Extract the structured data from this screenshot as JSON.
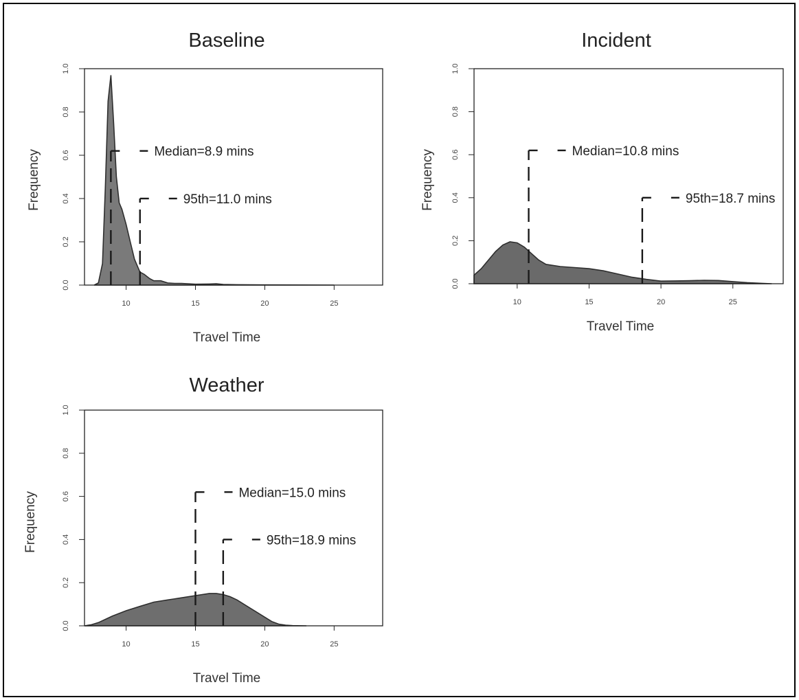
{
  "chart_data": [
    {
      "type": "area",
      "id": "baseline",
      "title": "Baseline",
      "xlabel": "Travel Time",
      "ylabel": "Frequency",
      "xlim": [
        7,
        28.5
      ],
      "ylim": [
        0,
        1.0
      ],
      "xticks": [
        "10",
        "15",
        "20",
        "25"
      ],
      "yticks": [
        "0.0",
        "0.2",
        "0.4",
        "0.6",
        "0.8",
        "1.0"
      ],
      "fill_color": "#7a7a7a",
      "series": [
        {
          "x": [
            7.7,
            8.0,
            8.3,
            8.5,
            8.7,
            8.9,
            9.1,
            9.3,
            9.5,
            9.7,
            10.0,
            10.3,
            10.6,
            11.0,
            11.3,
            11.7,
            12.0,
            12.5,
            13.0,
            13.5,
            14.0,
            15.0,
            16.0,
            16.5,
            17.0,
            18.0,
            20.0,
            25.0
          ],
          "y": [
            0.0,
            0.01,
            0.1,
            0.45,
            0.85,
            0.97,
            0.75,
            0.5,
            0.38,
            0.35,
            0.28,
            0.2,
            0.12,
            0.06,
            0.05,
            0.03,
            0.02,
            0.02,
            0.01,
            0.008,
            0.008,
            0.004,
            0.005,
            0.006,
            0.003,
            0.002,
            0.001,
            0.0
          ]
        }
      ],
      "annotations": [
        {
          "label": "Median=8.9 mins",
          "x": 8.9,
          "y": 0.62
        },
        {
          "label": "95th=11.0 mins",
          "x": 11.0,
          "y": 0.4
        }
      ]
    },
    {
      "type": "area",
      "id": "incident",
      "title": "Incident",
      "xlabel": "Travel Time",
      "ylabel": "Frequency",
      "xlim": [
        7,
        28.5
      ],
      "ylim": [
        0,
        1.0
      ],
      "xticks": [
        "10",
        "15",
        "20",
        "25"
      ],
      "yticks": [
        "0.0",
        "0.2",
        "0.4",
        "0.6",
        "0.8",
        "1.0"
      ],
      "fill_color": "#6a6a6a",
      "series": [
        {
          "x": [
            7.0,
            7.5,
            8.0,
            8.5,
            9.0,
            9.5,
            10.0,
            10.5,
            11.0,
            11.5,
            12.0,
            13.0,
            14.0,
            15.0,
            16.0,
            17.0,
            18.0,
            19.0,
            20.0,
            21.0,
            22.0,
            23.0,
            24.0,
            25.0,
            26.0,
            27.0,
            27.7
          ],
          "y": [
            0.04,
            0.07,
            0.11,
            0.15,
            0.18,
            0.195,
            0.19,
            0.17,
            0.14,
            0.11,
            0.09,
            0.08,
            0.075,
            0.07,
            0.06,
            0.045,
            0.03,
            0.02,
            0.012,
            0.013,
            0.014,
            0.016,
            0.015,
            0.01,
            0.005,
            0.002,
            0.0
          ]
        }
      ],
      "annotations": [
        {
          "label": "Median=10.8 mins",
          "x": 10.8,
          "y": 0.62
        },
        {
          "label": "95th=18.7 mins",
          "x": 18.7,
          "y": 0.4
        }
      ]
    },
    {
      "type": "area",
      "id": "weather",
      "title": "Weather",
      "xlabel": "Travel Time",
      "ylabel": "Frequency",
      "xlim": [
        7,
        28.5
      ],
      "ylim": [
        0,
        1.0
      ],
      "xticks": [
        "10",
        "15",
        "20",
        "25"
      ],
      "yticks": [
        "0.0",
        "0.2",
        "0.4",
        "0.6",
        "0.8",
        "1.0"
      ],
      "fill_color": "#6e6e6e",
      "series": [
        {
          "x": [
            7.0,
            7.5,
            8.0,
            8.5,
            9.0,
            10.0,
            11.0,
            12.0,
            13.0,
            14.0,
            15.0,
            16.0,
            16.5,
            17.0,
            17.5,
            18.0,
            19.0,
            20.0,
            20.5,
            21.0,
            21.5,
            22.0,
            23.0
          ],
          "y": [
            0.0,
            0.005,
            0.015,
            0.03,
            0.045,
            0.07,
            0.09,
            0.11,
            0.12,
            0.13,
            0.14,
            0.15,
            0.15,
            0.145,
            0.135,
            0.12,
            0.08,
            0.04,
            0.02,
            0.008,
            0.003,
            0.001,
            0.0
          ]
        }
      ],
      "annotations": [
        {
          "label": "Median=15.0 mins",
          "x": 15.0,
          "y": 0.62
        },
        {
          "label": "95th=18.9 mins",
          "x": 17.0,
          "y": 0.4
        }
      ]
    }
  ]
}
